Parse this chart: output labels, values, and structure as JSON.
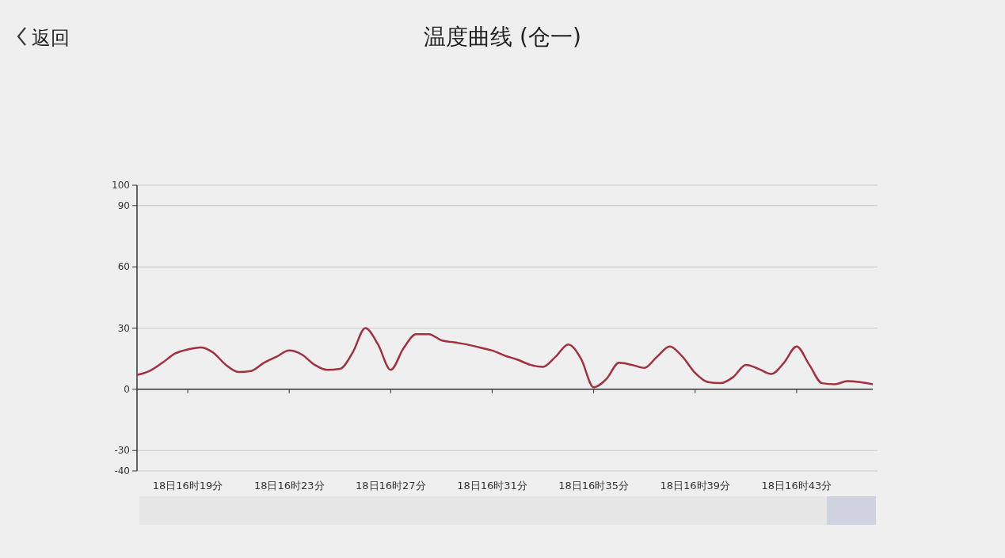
{
  "chart_data": {
    "type": "line",
    "title": "温度曲线 (仓一)",
    "annotations": [
      "返回"
    ],
    "categories": [
      null,
      null,
      null,
      null,
      "18日16时19分",
      null,
      null,
      null,
      null,
      null,
      null,
      null,
      "18日16时23分",
      null,
      null,
      null,
      null,
      null,
      null,
      null,
      "18日16时27分",
      null,
      null,
      null,
      null,
      null,
      null,
      null,
      "18日16时31分",
      null,
      null,
      null,
      null,
      null,
      null,
      null,
      "18日16时35分",
      null,
      null,
      null,
      null,
      null,
      null,
      null,
      "18日16时39分",
      null,
      null,
      null,
      null,
      null,
      null,
      null,
      "18日16时43分",
      null,
      null,
      null,
      null,
      null,
      null
    ],
    "series": [
      {
        "color": "#a3303f",
        "values": [
          7,
          9,
          13,
          17.5,
          19.5,
          20.5,
          18,
          12,
          8.5,
          9,
          13,
          16,
          19,
          17,
          12,
          9.5,
          10,
          18,
          30,
          22,
          9.5,
          20,
          27,
          27,
          24,
          23,
          22,
          20.5,
          19,
          16.5,
          14.5,
          12,
          11,
          16,
          22,
          15,
          1,
          5,
          13,
          12,
          10.5,
          16,
          21,
          16,
          8,
          3.5,
          3,
          6,
          12,
          10,
          7.5,
          13,
          21,
          12,
          3,
          2.5,
          4,
          3.5,
          2.5
        ]
      }
    ],
    "ylim": [
      -40,
      100
    ],
    "yticks": [
      -40,
      -30,
      0,
      30,
      60,
      90,
      100
    ],
    "grid": "y",
    "marker": "none",
    "line_style": "solid"
  }
}
